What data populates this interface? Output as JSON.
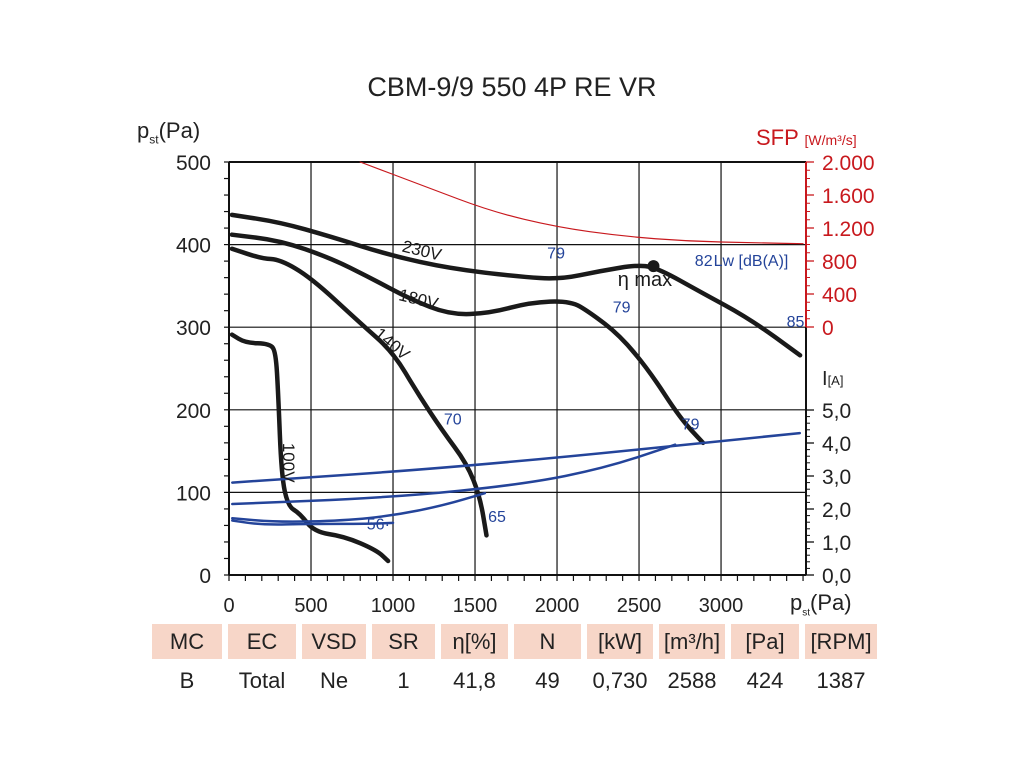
{
  "chart_data": {
    "type": "line",
    "title": "CBM-9/9 550 4P RE VR",
    "xlabel": "p",
    "xlabel_sub": "st",
    "xlabel_unit": "(Pa)",
    "ylabel": "p",
    "ylabel_sub": "st",
    "ylabel_unit": "(Pa)",
    "xlim": [
      0,
      3518
    ],
    "ylim": [
      0,
      500
    ],
    "grid": true,
    "x_ticks": [
      0,
      500,
      1000,
      1500,
      2000,
      2500,
      3000
    ],
    "y_ticks": [
      0,
      100,
      200,
      300,
      400,
      500
    ],
    "sfp_axis": {
      "label": "SFP",
      "unit": "[W/m³/s]",
      "range": [
        0,
        2000
      ],
      "ticks": [
        "2.000",
        "1.600",
        "1.200",
        "800",
        "400",
        "0"
      ],
      "color": "#c8191e"
    },
    "current_axis": {
      "label": "I",
      "unit": "[A]",
      "range": [
        0,
        5
      ],
      "ticks": [
        "5,0",
        "4,0",
        "3,0",
        "2,0",
        "1,0",
        "0,0"
      ]
    },
    "series": [
      {
        "name": "230V",
        "kind": "pressure",
        "points": [
          [
            18,
            436
          ],
          [
            311,
            427
          ],
          [
            616,
            410
          ],
          [
            982,
            387
          ],
          [
            1348,
            371
          ],
          [
            1774,
            361
          ],
          [
            2018,
            358
          ],
          [
            2262,
            368
          ],
          [
            2506,
            376
          ],
          [
            2628,
            370
          ],
          [
            2872,
            343
          ],
          [
            3177,
            310
          ],
          [
            3482,
            266
          ]
        ]
      },
      {
        "name": "180V",
        "kind": "pressure",
        "points": [
          [
            18,
            412
          ],
          [
            311,
            405
          ],
          [
            616,
            384
          ],
          [
            860,
            360
          ],
          [
            1104,
            334
          ],
          [
            1348,
            315
          ],
          [
            1590,
            317
          ],
          [
            1835,
            330
          ],
          [
            2080,
            332
          ],
          [
            2200,
            318
          ],
          [
            2384,
            290
          ],
          [
            2567,
            246
          ],
          [
            2750,
            190
          ],
          [
            2890,
            160
          ]
        ]
      },
      {
        "name": "140V",
        "kind": "pressure",
        "points": [
          [
            18,
            395
          ],
          [
            200,
            383
          ],
          [
            311,
            382
          ],
          [
            500,
            360
          ],
          [
            800,
            305
          ],
          [
            1000,
            270
          ],
          [
            1150,
            220
          ],
          [
            1300,
            175
          ],
          [
            1450,
            135
          ],
          [
            1530,
            95
          ],
          [
            1570,
            48
          ]
        ]
      },
      {
        "name": "100V",
        "kind": "pressure",
        "points": [
          [
            18,
            291
          ],
          [
            100,
            281
          ],
          [
            250,
            280
          ],
          [
            285,
            270
          ],
          [
            300,
            220
          ],
          [
            320,
            120
          ],
          [
            360,
            83
          ],
          [
            430,
            75
          ],
          [
            520,
            52
          ],
          [
            700,
            47
          ],
          [
            900,
            30
          ],
          [
            970,
            17
          ]
        ]
      },
      {
        "name": "I-230V",
        "kind": "current",
        "points": [
          [
            20,
            2.8
          ],
          [
            1500,
            3.3
          ],
          [
            3480,
            4.3
          ]
        ]
      },
      {
        "name": "I-180V",
        "kind": "current",
        "points": [
          [
            20,
            2.15
          ],
          [
            1000,
            2.35
          ],
          [
            1800,
            2.75
          ],
          [
            2300,
            3.25
          ],
          [
            2720,
            3.95
          ]
        ]
      },
      {
        "name": "I-140V",
        "kind": "current",
        "points": [
          [
            20,
            1.72
          ],
          [
            300,
            1.6
          ],
          [
            700,
            1.65
          ],
          [
            1000,
            1.8
          ],
          [
            1300,
            2.1
          ],
          [
            1560,
            2.48
          ]
        ]
      },
      {
        "name": "I-100V",
        "kind": "current",
        "points": [
          [
            20,
            1.65
          ],
          [
            200,
            1.52
          ],
          [
            500,
            1.55
          ],
          [
            850,
            1.55
          ],
          [
            1000,
            1.58
          ]
        ]
      },
      {
        "name": "SFP",
        "kind": "sfp",
        "points": [
          [
            800,
            2000
          ],
          [
            1200,
            1700
          ],
          [
            1600,
            1400
          ],
          [
            2000,
            1210
          ],
          [
            2400,
            1100
          ],
          [
            2800,
            1040
          ],
          [
            3200,
            1020
          ],
          [
            3500,
            1010
          ]
        ]
      }
    ],
    "annotations": [
      {
        "text": "230V",
        "x": 1050,
        "y": 392,
        "rotate": 14
      },
      {
        "text": "180V",
        "x": 1030,
        "y": 333,
        "rotate": 14
      },
      {
        "text": "140V",
        "x": 880,
        "y": 290,
        "rotate": 40
      },
      {
        "text": "100V",
        "x": 330,
        "y": 160,
        "rotate": 90
      },
      {
        "text": "79",
        "x": 1940,
        "y": 383,
        "kind": "lw"
      },
      {
        "text": "82",
        "x": 2840,
        "y": 374,
        "kind": "lw"
      },
      {
        "text": "Lw [dB(A)]",
        "x": 2955,
        "y": 374,
        "kind": "lw"
      },
      {
        "text": "79",
        "x": 2340,
        "y": 318,
        "kind": "lw"
      },
      {
        "text": "85",
        "x": 3400,
        "y": 300,
        "kind": "lw"
      },
      {
        "text": "70",
        "x": 1310,
        "y": 182,
        "kind": "lw"
      },
      {
        "text": "79",
        "x": 2760,
        "y": 176,
        "kind": "lw"
      },
      {
        "text": "65",
        "x": 1580,
        "y": 64,
        "kind": "lw"
      },
      {
        "text": "56·",
        "x": 840,
        "y": 55,
        "kind": "lw"
      },
      {
        "text": "η max",
        "x": 2370,
        "y": 350,
        "kind": "eta"
      }
    ],
    "eta_max_point": [
      2588,
      374
    ]
  },
  "colors": {
    "pressure": "#1a1a1a",
    "current": "#24449a",
    "sfp": "#c8191e",
    "table_header_bg": "#f7d6c8",
    "lw_text": "#24449a"
  },
  "table": {
    "headers": [
      "MC",
      "EC",
      "VSD",
      "SR",
      "η[%]",
      "N",
      "[kW]",
      "[m³/h]",
      "[Pa]",
      "[RPM]"
    ],
    "values": [
      "B",
      "Total",
      "Ne",
      "1",
      "41,8",
      "49",
      "0,730",
      "2588",
      "424",
      "1387"
    ]
  }
}
